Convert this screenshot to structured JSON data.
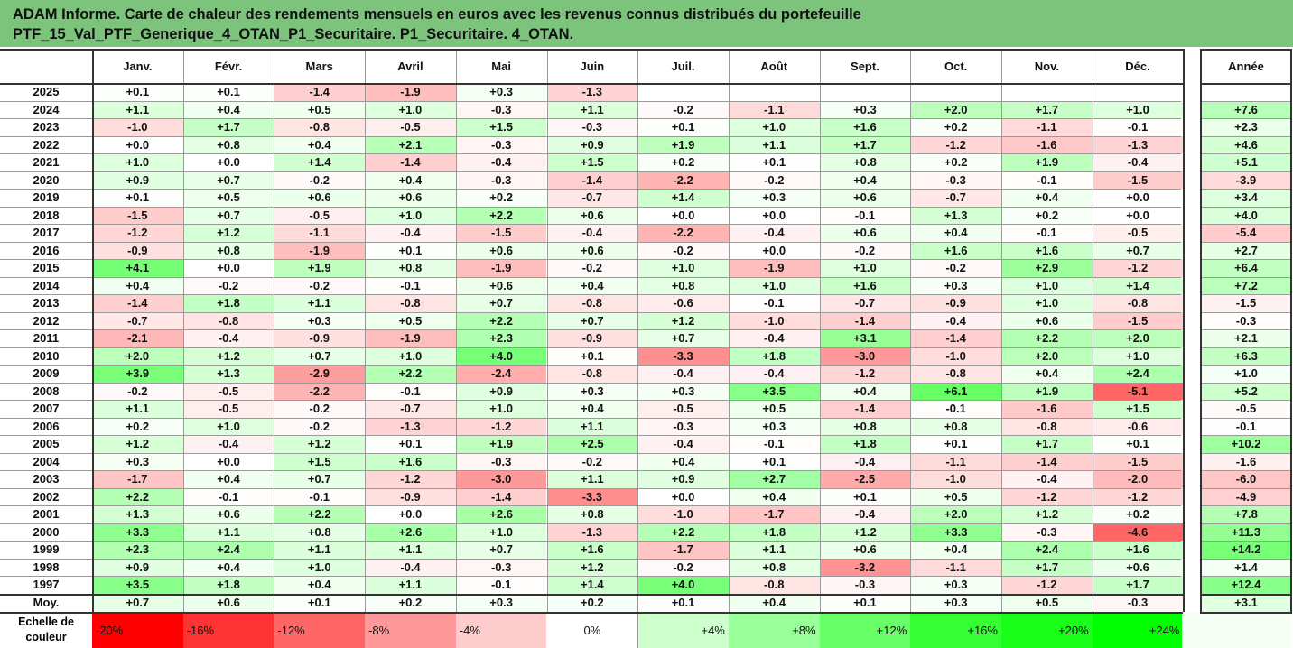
{
  "title": {
    "line1": "ADAM Informe. Carte de chaleur des rendements mensuels en euros avec les revenus connus distribués du portefeuille",
    "line2": "PTF_15_Val_PTF_Generique_4_OTAN_P1_Securitaire. P1_Securitaire. 4_OTAN."
  },
  "corner_text": "",
  "brand_text": "",
  "scale_label": {
    "line1": "Echelle de",
    "line2": "couleur"
  },
  "color_scale": [
    {
      "label": "-20%",
      "color": "#ff0000"
    },
    {
      "label": "-16%",
      "color": "#ff3333"
    },
    {
      "label": "-12%",
      "color": "#ff6666"
    },
    {
      "label": "-8%",
      "color": "#ff9999"
    },
    {
      "label": "-4%",
      "color": "#ffcccc"
    },
    {
      "label": "0%",
      "color": "#ffffff"
    },
    {
      "label": "+4%",
      "color": "#ccffcc"
    },
    {
      "label": "+8%",
      "color": "#99ff99"
    },
    {
      "label": "+12%",
      "color": "#66ff66"
    },
    {
      "label": "+16%",
      "color": "#33ff33"
    },
    {
      "label": "+20%",
      "color": "#1aff1a"
    },
    {
      "label": "+24%",
      "color": "#00ff00"
    }
  ],
  "chart_data": {
    "type": "heatmap",
    "title": "ADAM Informe. Carte de chaleur des rendements mensuels en euros avec les revenus connus distribués du portefeuille PTF_15_Val_PTF_Generique_4_OTAN_P1_Securitaire. P1_Securitaire. 4_OTAN.",
    "columns": [
      "Janv.",
      "Févr.",
      "Mars",
      "Avril",
      "Mai",
      "Juin",
      "Juil.",
      "Août",
      "Sept.",
      "Oct.",
      "Nov.",
      "Déc."
    ],
    "year_column": "Année",
    "rows": [
      {
        "year": "2025",
        "values": [
          0.1,
          0.1,
          -1.4,
          -1.9,
          0.3,
          -1.3,
          null,
          null,
          null,
          null,
          null,
          null
        ],
        "annual": null
      },
      {
        "year": "2024",
        "values": [
          1.1,
          0.4,
          0.5,
          1.0,
          -0.3,
          1.1,
          -0.2,
          -1.1,
          0.3,
          2.0,
          1.7,
          1.0
        ],
        "annual": 7.6
      },
      {
        "year": "2023",
        "values": [
          -1.0,
          1.7,
          -0.8,
          -0.5,
          1.5,
          -0.3,
          0.1,
          1.0,
          1.6,
          0.2,
          -1.1,
          -0.1
        ],
        "annual": 2.3
      },
      {
        "year": "2022",
        "values": [
          -0.0,
          0.8,
          0.4,
          2.1,
          -0.3,
          0.9,
          1.9,
          1.1,
          1.7,
          -1.2,
          -1.6,
          -1.3
        ],
        "annual": 4.6
      },
      {
        "year": "2021",
        "values": [
          1.0,
          -0.0,
          1.4,
          -1.4,
          -0.4,
          1.5,
          0.2,
          0.1,
          0.8,
          0.2,
          1.9,
          -0.4
        ],
        "annual": 5.1
      },
      {
        "year": "2020",
        "values": [
          0.9,
          0.7,
          -0.2,
          0.4,
          -0.3,
          -1.4,
          -2.2,
          -0.2,
          0.4,
          -0.3,
          -0.1,
          -1.5
        ],
        "annual": -3.9
      },
      {
        "year": "2019",
        "values": [
          0.1,
          0.5,
          0.6,
          0.6,
          0.2,
          -0.7,
          1.4,
          0.3,
          0.6,
          -0.7,
          0.4,
          0.0
        ],
        "annual": 3.4
      },
      {
        "year": "2018",
        "values": [
          -1.5,
          0.7,
          -0.5,
          1.0,
          2.2,
          0.6,
          0.0,
          0.0,
          -0.1,
          1.3,
          0.2,
          0.0
        ],
        "annual": 4.0
      },
      {
        "year": "2017",
        "values": [
          -1.2,
          1.2,
          -1.1,
          -0.4,
          -1.5,
          -0.4,
          -2.2,
          -0.4,
          0.6,
          0.4,
          -0.1,
          -0.5
        ],
        "annual": -5.4
      },
      {
        "year": "2016",
        "values": [
          -0.9,
          0.8,
          -1.9,
          0.1,
          0.6,
          0.6,
          -0.2,
          -0.0,
          -0.2,
          1.6,
          1.6,
          0.7
        ],
        "annual": 2.7
      },
      {
        "year": "2015",
        "values": [
          4.1,
          0.0,
          1.9,
          0.8,
          -1.9,
          -0.2,
          1.0,
          -1.9,
          1.0,
          -0.2,
          2.9,
          -1.2
        ],
        "annual": 6.4
      },
      {
        "year": "2014",
        "values": [
          0.4,
          -0.2,
          -0.2,
          -0.1,
          0.6,
          0.4,
          0.8,
          1.0,
          1.6,
          0.3,
          1.0,
          1.4
        ],
        "annual": 7.2
      },
      {
        "year": "2013",
        "values": [
          -1.4,
          1.8,
          1.1,
          -0.8,
          0.7,
          -0.8,
          -0.6,
          -0.1,
          -0.7,
          -0.9,
          1.0,
          -0.8
        ],
        "annual": -1.5
      },
      {
        "year": "2012",
        "values": [
          -0.7,
          -0.8,
          0.3,
          0.5,
          2.2,
          0.7,
          1.2,
          -1.0,
          -1.4,
          -0.4,
          0.6,
          -1.5
        ],
        "annual": -0.3
      },
      {
        "year": "2011",
        "values": [
          -2.1,
          -0.4,
          -0.9,
          -1.9,
          2.3,
          -0.9,
          0.7,
          -0.4,
          3.1,
          -1.4,
          2.2,
          2.0
        ],
        "annual": 2.1
      },
      {
        "year": "2010",
        "values": [
          2.0,
          1.2,
          0.7,
          1.0,
          4.0,
          0.1,
          -3.3,
          1.8,
          -3.0,
          -1.0,
          2.0,
          1.0
        ],
        "annual": 6.3
      },
      {
        "year": "2009",
        "values": [
          3.9,
          1.3,
          -2.9,
          2.2,
          -2.4,
          -0.8,
          -0.4,
          -0.4,
          -1.2,
          -0.8,
          0.4,
          2.4
        ],
        "annual": 1.0
      },
      {
        "year": "2008",
        "values": [
          -0.2,
          -0.5,
          -2.2,
          -0.1,
          0.9,
          0.3,
          0.3,
          3.5,
          0.4,
          6.1,
          1.9,
          -5.1
        ],
        "annual": 5.2
      },
      {
        "year": "2007",
        "values": [
          1.1,
          -0.5,
          -0.2,
          -0.7,
          1.0,
          0.4,
          -0.5,
          0.5,
          -1.4,
          -0.1,
          -1.6,
          1.5
        ],
        "annual": -0.5
      },
      {
        "year": "2006",
        "values": [
          0.2,
          1.0,
          -0.2,
          -1.3,
          -1.2,
          1.1,
          -0.3,
          0.3,
          0.8,
          0.8,
          -0.8,
          -0.6
        ],
        "annual": -0.1
      },
      {
        "year": "2005",
        "values": [
          1.2,
          -0.4,
          1.2,
          0.1,
          1.9,
          2.5,
          -0.4,
          -0.1,
          1.8,
          0.1,
          1.7,
          0.1
        ],
        "annual": 10.2
      },
      {
        "year": "2004",
        "values": [
          0.3,
          0.0,
          1.5,
          1.6,
          -0.3,
          -0.2,
          0.4,
          0.1,
          -0.4,
          -1.1,
          -1.4,
          -1.5
        ],
        "annual": -1.6
      },
      {
        "year": "2003",
        "values": [
          -1.7,
          0.4,
          0.7,
          -1.2,
          -3.0,
          1.1,
          0.9,
          2.7,
          -2.5,
          -1.0,
          -0.4,
          -2.0
        ],
        "annual": -6.0
      },
      {
        "year": "2002",
        "values": [
          2.2,
          -0.1,
          -0.1,
          -0.9,
          -1.4,
          -3.3,
          -0.0,
          0.4,
          0.1,
          0.5,
          -1.2,
          -1.2
        ],
        "annual": -4.9
      },
      {
        "year": "2001",
        "values": [
          1.3,
          0.6,
          2.2,
          -0.0,
          2.6,
          0.8,
          -1.0,
          -1.7,
          -0.4,
          2.0,
          1.2,
          0.2
        ],
        "annual": 7.8
      },
      {
        "year": "2000",
        "values": [
          3.3,
          1.1,
          0.8,
          2.6,
          1.0,
          -1.3,
          2.2,
          1.8,
          1.2,
          3.3,
          -0.3,
          -4.6
        ],
        "annual": 11.3
      },
      {
        "year": "1999",
        "values": [
          2.3,
          2.4,
          1.1,
          1.1,
          0.7,
          1.6,
          -1.7,
          1.1,
          0.6,
          0.4,
          2.4,
          1.6
        ],
        "annual": 14.2
      },
      {
        "year": "1998",
        "values": [
          0.9,
          0.4,
          1.0,
          -0.4,
          -0.3,
          1.2,
          -0.2,
          0.8,
          -3.2,
          -1.1,
          1.7,
          0.6
        ],
        "annual": 1.4
      },
      {
        "year": "1997",
        "values": [
          3.5,
          1.8,
          0.4,
          1.1,
          -0.1,
          1.4,
          4.0,
          -0.8,
          -0.3,
          0.3,
          -1.2,
          1.7
        ],
        "annual": 12.4
      }
    ],
    "average_row": {
      "label": "Moy.",
      "values": [
        0.7,
        0.6,
        0.1,
        0.2,
        0.3,
        0.2,
        0.1,
        0.4,
        0.1,
        0.3,
        0.5,
        -0.3
      ],
      "annual": 3.1
    }
  }
}
